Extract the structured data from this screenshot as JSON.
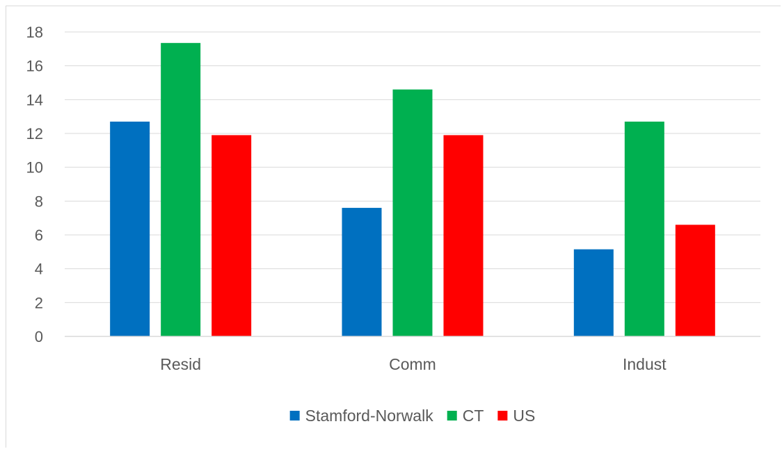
{
  "chart_data": {
    "type": "bar",
    "title": "",
    "xlabel": "",
    "ylabel": "",
    "categories": [
      "Resid",
      "Comm",
      "Indust"
    ],
    "series": [
      {
        "name": "Stamford-Norwalk",
        "color": "#0070C0",
        "values": [
          12.7,
          7.6,
          5.15
        ]
      },
      {
        "name": "CT",
        "color": "#00B050",
        "values": [
          17.35,
          14.6,
          12.7
        ]
      },
      {
        "name": "US",
        "color": "#FF0000",
        "values": [
          11.9,
          11.9,
          6.6
        ]
      }
    ],
    "ylim": [
      0,
      18
    ],
    "yticks": [
      0,
      2,
      4,
      6,
      8,
      10,
      12,
      14,
      16,
      18
    ],
    "grid": true,
    "legend_position": "bottom"
  }
}
